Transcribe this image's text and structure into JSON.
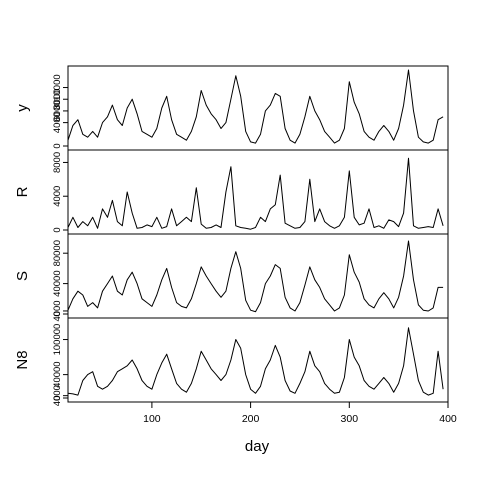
{
  "chart_data": {
    "type": "line",
    "title": "",
    "xlabel": "day",
    "xlim": [
      15,
      400
    ],
    "xticks": [
      100,
      200,
      300,
      400
    ],
    "xtick_labels": [
      "100",
      "200",
      "300",
      "400"
    ],
    "panels": [
      {
        "name": "y",
        "ylim": [
          0,
          13000
        ],
        "yticks": [
          0,
          4000,
          6000,
          8000,
          10000
        ],
        "ytick_labels": [
          "0",
          "4000",
          "6000",
          "8000",
          "10000"
        ],
        "x": [
          15,
          20,
          25,
          30,
          35,
          40,
          45,
          50,
          55,
          60,
          65,
          70,
          75,
          80,
          85,
          90,
          95,
          100,
          105,
          110,
          115,
          120,
          125,
          130,
          135,
          140,
          145,
          150,
          155,
          160,
          165,
          170,
          175,
          180,
          185,
          190,
          195,
          200,
          205,
          210,
          215,
          220,
          225,
          230,
          235,
          240,
          245,
          250,
          255,
          260,
          265,
          270,
          275,
          280,
          285,
          290,
          295,
          300,
          305,
          310,
          315,
          320,
          325,
          330,
          335,
          340,
          345,
          350,
          355,
          360,
          365,
          370,
          375,
          380,
          385,
          390,
          395
        ],
        "values": [
          1000,
          3500,
          4500,
          2000,
          1500,
          2500,
          1500,
          4000,
          5000,
          7000,
          4500,
          3500,
          6500,
          8000,
          5500,
          2500,
          2000,
          1500,
          3000,
          6500,
          8500,
          4500,
          2000,
          1500,
          1000,
          2500,
          5000,
          9500,
          7000,
          5500,
          4500,
          3000,
          4000,
          8000,
          12000,
          8500,
          2500,
          700,
          500,
          2000,
          6000,
          7000,
          9000,
          8500,
          3000,
          1000,
          500,
          2000,
          5000,
          8500,
          6000,
          4500,
          2500,
          1500,
          500,
          1000,
          3000,
          11000,
          7500,
          5500,
          2500,
          1500,
          1000,
          2500,
          3500,
          2500,
          1000,
          3000,
          7000,
          13000,
          6000,
          1500,
          700,
          500,
          1000,
          4500,
          5000
        ]
      },
      {
        "name": "R",
        "ylim": [
          0,
          9000
        ],
        "yticks": [
          0,
          4000,
          8000
        ],
        "ytick_labels": [
          "0",
          "4000",
          "8000"
        ],
        "x": [
          15,
          20,
          25,
          30,
          35,
          40,
          45,
          50,
          55,
          60,
          65,
          70,
          75,
          80,
          85,
          90,
          95,
          100,
          105,
          110,
          115,
          120,
          125,
          130,
          135,
          140,
          145,
          150,
          155,
          160,
          165,
          170,
          175,
          180,
          185,
          190,
          195,
          200,
          205,
          210,
          215,
          220,
          225,
          230,
          235,
          240,
          245,
          250,
          255,
          260,
          265,
          270,
          275,
          280,
          285,
          290,
          295,
          300,
          305,
          310,
          315,
          320,
          325,
          330,
          335,
          340,
          345,
          350,
          355,
          360,
          365,
          370,
          375,
          380,
          385,
          390,
          395
        ],
        "values": [
          300,
          1500,
          300,
          1000,
          500,
          1500,
          200,
          2500,
          1500,
          3500,
          1000,
          500,
          4500,
          2000,
          200,
          300,
          600,
          400,
          1500,
          200,
          400,
          2500,
          500,
          1000,
          1500,
          1000,
          5000,
          700,
          200,
          300,
          600,
          300,
          4500,
          7500,
          500,
          300,
          200,
          100,
          300,
          1500,
          1000,
          2500,
          3000,
          6500,
          800,
          500,
          200,
          300,
          1000,
          6000,
          1000,
          2500,
          1000,
          500,
          200,
          500,
          1500,
          7000,
          1500,
          600,
          800,
          2500,
          300,
          500,
          200,
          1200,
          1000,
          400,
          2000,
          8500,
          500,
          200,
          300,
          400,
          300,
          2500,
          500
        ]
      },
      {
        "name": "S",
        "ylim": [
          0,
          100000
        ],
        "yticks": [
          0,
          4000,
          40000,
          80000
        ],
        "ytick_labels": [
          "0",
          "4000",
          "40000",
          "80000"
        ],
        "x": [
          15,
          20,
          25,
          30,
          35,
          40,
          45,
          50,
          55,
          60,
          65,
          70,
          75,
          80,
          85,
          90,
          95,
          100,
          105,
          110,
          115,
          120,
          125,
          130,
          135,
          140,
          145,
          150,
          155,
          160,
          165,
          170,
          175,
          180,
          185,
          190,
          195,
          200,
          205,
          210,
          215,
          220,
          225,
          230,
          235,
          240,
          245,
          250,
          255,
          260,
          265,
          270,
          275,
          280,
          285,
          290,
          295,
          300,
          305,
          310,
          315,
          320,
          325,
          330,
          335,
          340,
          345,
          350,
          355,
          360,
          365,
          370,
          375,
          380,
          385,
          390,
          395
        ],
        "values": [
          5000,
          20000,
          30000,
          25000,
          10000,
          15000,
          8000,
          30000,
          40000,
          50000,
          30000,
          25000,
          45000,
          55000,
          40000,
          20000,
          15000,
          10000,
          25000,
          45000,
          60000,
          35000,
          15000,
          10000,
          8000,
          20000,
          40000,
          62000,
          50000,
          40000,
          30000,
          22000,
          30000,
          60000,
          82000,
          60000,
          18000,
          5000,
          3000,
          15000,
          40000,
          50000,
          65000,
          60000,
          22000,
          8000,
          4000,
          15000,
          38000,
          62000,
          45000,
          35000,
          20000,
          12000,
          4000,
          8000,
          25000,
          78000,
          55000,
          42000,
          20000,
          12000,
          8000,
          20000,
          28000,
          20000,
          8000,
          22000,
          50000,
          96000,
          45000,
          12000,
          5000,
          4000,
          8000,
          35000,
          35000
        ]
      },
      {
        "name": "N8",
        "ylim": [
          0,
          130000
        ],
        "yticks": [
          0,
          4000,
          40000,
          100000
        ],
        "ytick_labels": [
          "0",
          "4000",
          "40000",
          "100000"
        ],
        "x": [
          15,
          20,
          25,
          30,
          35,
          40,
          45,
          50,
          55,
          60,
          65,
          70,
          75,
          80,
          85,
          90,
          95,
          100,
          105,
          110,
          115,
          120,
          125,
          130,
          135,
          140,
          145,
          150,
          155,
          160,
          165,
          170,
          175,
          180,
          185,
          190,
          195,
          200,
          205,
          210,
          215,
          220,
          225,
          230,
          235,
          240,
          245,
          250,
          255,
          260,
          265,
          270,
          275,
          280,
          285,
          290,
          295,
          300,
          305,
          310,
          315,
          320,
          325,
          330,
          335,
          340,
          345,
          350,
          355,
          360,
          365,
          370,
          375,
          380,
          385,
          390,
          395
        ],
        "values": [
          8000,
          7000,
          5000,
          30000,
          40000,
          45000,
          20000,
          15000,
          20000,
          30000,
          45000,
          50000,
          55000,
          65000,
          50000,
          30000,
          20000,
          15000,
          40000,
          60000,
          75000,
          50000,
          25000,
          15000,
          10000,
          25000,
          50000,
          80000,
          65000,
          50000,
          40000,
          30000,
          40000,
          65000,
          100000,
          85000,
          40000,
          15000,
          8000,
          20000,
          50000,
          65000,
          90000,
          70000,
          30000,
          12000,
          8000,
          25000,
          45000,
          80000,
          55000,
          45000,
          25000,
          15000,
          8000,
          10000,
          35000,
          100000,
          70000,
          55000,
          30000,
          20000,
          15000,
          25000,
          35000,
          25000,
          10000,
          25000,
          55000,
          120000,
          75000,
          30000,
          10000,
          5000,
          8000,
          80000,
          15000
        ]
      }
    ]
  }
}
